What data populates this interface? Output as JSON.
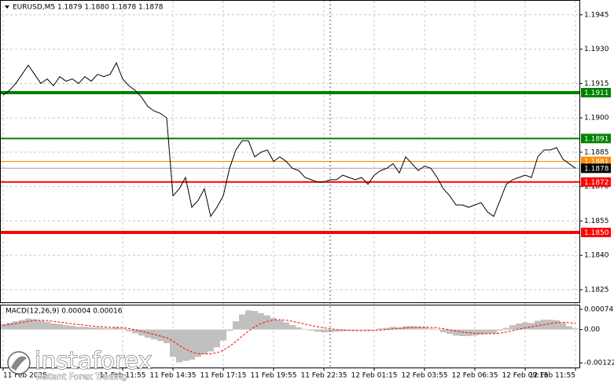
{
  "chart_data": [
    {
      "type": "line",
      "title": "EURUSD,M5  1.1879 1.1880 1.1878 1.1878",
      "categories": [
        "11 Feb 2025",
        null,
        null,
        null,
        null,
        null,
        null,
        null,
        null,
        null,
        null,
        null,
        null,
        null,
        null,
        null,
        null,
        null,
        null,
        "11 Feb 11:55",
        null,
        null,
        null,
        null,
        null,
        null,
        null,
        "11 Feb 14:35",
        null,
        null,
        null,
        null,
        null,
        null,
        null,
        "11 Feb 17:15",
        null,
        null,
        null,
        null,
        null,
        null,
        null,
        "11 Feb 19:55",
        null,
        null,
        null,
        null,
        null,
        null,
        null,
        "11 Feb 22:35",
        null,
        null,
        null,
        null,
        null,
        null,
        null,
        "12 Feb 01:15",
        null,
        null,
        null,
        null,
        null,
        null,
        null,
        "12 Feb 03:55",
        null,
        null,
        null,
        null,
        null,
        null,
        null,
        "12 Feb 06:35",
        null,
        null,
        null,
        null,
        null,
        null,
        null,
        "12 Feb 09:15",
        null,
        null,
        null,
        null,
        null,
        null,
        null,
        "12 Feb 11:55"
      ],
      "series": [
        {
          "color": "#000000",
          "values": [
            1.191,
            1.1912,
            1.1915,
            1.1919,
            1.1923,
            1.1919,
            1.1915,
            1.1917,
            1.1914,
            1.1918,
            1.1916,
            1.1917,
            1.1915,
            1.1918,
            1.1916,
            1.1919,
            1.1918,
            1.1919,
            1.1924,
            1.1917,
            1.1914,
            1.1912,
            1.1909,
            1.1905,
            1.1903,
            1.1902,
            1.19,
            1.1866,
            1.1869,
            1.1874,
            1.1861,
            1.1864,
            1.1869,
            1.1857,
            1.1861,
            1.1866,
            1.1878,
            1.1886,
            1.189,
            1.189,
            1.1883,
            1.1885,
            1.1886,
            1.1881,
            1.1883,
            1.1881,
            1.1878,
            1.1877,
            1.1874,
            1.1873,
            1.1872,
            1.1872,
            1.1873,
            1.1873,
            1.1875,
            1.1874,
            1.1873,
            1.1874,
            1.1871,
            1.1875,
            1.1877,
            1.1878,
            1.188,
            1.1876,
            1.1883,
            1.188,
            1.1877,
            1.1879,
            1.1878,
            1.1874,
            1.1869,
            1.1866,
            1.1862,
            1.1862,
            1.1861,
            1.1862,
            1.1863,
            1.1859,
            1.1857,
            1.1864,
            1.1871,
            1.1873,
            1.1874,
            1.1875,
            1.1874,
            1.1883,
            1.1886,
            1.1886,
            1.1887,
            1.1882,
            1.188,
            1.1878
          ]
        }
      ],
      "ylim": [
        1.18195,
        1.19511
      ],
      "yticks": [
        {
          "value": 1.1945,
          "label": "1.1945"
        },
        {
          "value": 1.193,
          "label": "1.1930"
        },
        {
          "value": 1.1915,
          "label": "1.1915"
        },
        {
          "value": 1.19,
          "label": "1.1900"
        },
        {
          "value": 1.1885,
          "label": "1.1885"
        },
        {
          "value": 1.187,
          "label": "1.1870"
        },
        {
          "value": 1.1855,
          "label": "1.1855"
        },
        {
          "value": 1.184,
          "label": "1.1840"
        },
        {
          "value": 1.1825,
          "label": "1.1825"
        }
      ],
      "levels": [
        {
          "value": 1.1911,
          "label": "1.1911",
          "color": "#008000"
        },
        {
          "value": 1.1891,
          "label": "1.1891",
          "color": "#008000"
        },
        {
          "value": 1.1881,
          "label": "1.1881",
          "color": "#ff8c00"
        },
        {
          "value": 1.1872,
          "label": "1.1872",
          "color": "#ff0000"
        },
        {
          "value": 1.185,
          "label": "1.1850",
          "color": "#ff0000"
        }
      ],
      "last_price": {
        "value": 1.1878,
        "label": "1.1878",
        "color": "#000000"
      },
      "grid": true
    },
    {
      "type": "macd",
      "title": "MACD(12,26,9) 0.00004 0.00016",
      "series": [
        {
          "color": "#c0c0c0",
          "values": [
            0.0002,
            0.00025,
            0.0003,
            0.00035,
            0.0004,
            0.00038,
            0.00032,
            0.00028,
            0.00022,
            0.0002,
            0.00016,
            0.00014,
            0.0001,
            0.0001,
            8e-05,
            8e-05,
            6e-05,
            4e-05,
            8e-05,
            4e-05,
            -6e-05,
            -0.00014,
            -0.00022,
            -0.0003,
            -0.00036,
            -0.00042,
            -0.0005,
            -0.001,
            -0.0012,
            -0.00115,
            -0.0011,
            -0.001,
            -0.0009,
            -0.0008,
            -0.00065,
            -0.0004,
            -5e-05,
            0.0003,
            0.00055,
            0.0007,
            0.00068,
            0.0006,
            0.00052,
            0.00042,
            0.00034,
            0.00026,
            0.00016,
            8e-05,
            2e-05,
            -4e-05,
            -8e-05,
            -0.0001,
            -0.0001,
            -8e-05,
            -6e-05,
            -4e-05,
            -4e-05,
            -2e-05,
            -4e-05,
            0.0,
            4e-05,
            6e-05,
            0.0001,
            8e-05,
            0.00012,
            0.00012,
            0.0001,
            8e-05,
            4e-05,
            -2e-05,
            -0.0001,
            -0.00016,
            -0.00022,
            -0.00024,
            -0.00024,
            -0.00022,
            -0.00018,
            -0.00016,
            -0.00014,
            -4e-05,
            6e-05,
            0.00016,
            0.00022,
            0.00026,
            0.00024,
            0.00032,
            0.00036,
            0.00036,
            0.00034,
            0.00024,
            0.00012,
            4e-05
          ]
        },
        {
          "color": "#ff0000",
          "values": [
            0.00015,
            0.00018,
            0.00022,
            0.00026,
            0.0003,
            0.00033,
            0.00034,
            0.00033,
            0.0003,
            0.00027,
            0.00024,
            0.00021,
            0.00018,
            0.00016,
            0.00013,
            0.00011,
            0.0001,
            8e-05,
            8e-05,
            7e-05,
            4e-05,
            -1e-05,
            -6e-05,
            -0.00012,
            -0.00018,
            -0.00024,
            -0.0003,
            -0.00042,
            -0.00058,
            -0.00072,
            -0.00082,
            -0.00088,
            -0.0009,
            -0.00089,
            -0.00085,
            -0.00076,
            -0.00062,
            -0.00044,
            -0.00024,
            -6e-05,
            0.0001,
            0.00022,
            0.0003,
            0.00035,
            0.00036,
            0.00034,
            0.0003,
            0.00025,
            0.0002,
            0.00015,
            0.0001,
            6e-05,
            3e-05,
            0.0,
            -2e-05,
            -3e-05,
            -4e-05,
            -4e-05,
            -4e-05,
            -3e-05,
            -2e-05,
            0.0,
            2e-05,
            4e-05,
            6e-05,
            8e-05,
            9e-05,
            9e-05,
            8e-05,
            6e-05,
            3e-05,
            -1e-05,
            -5e-05,
            -9e-05,
            -0.00012,
            -0.00014,
            -0.00015,
            -0.00015,
            -0.00015,
            -0.00013,
            -9e-05,
            -4e-05,
            1e-05,
            6e-05,
            0.0001,
            0.00014,
            0.00018,
            0.00022,
            0.00025,
            0.00026,
            0.00025,
            0.00022
          ]
        }
      ],
      "ylim": [
        -0.00139,
        0.00088
      ],
      "yticks": [
        0.00074,
        {
          "value": 0,
          "label": "0.00"
        },
        -0.00122
      ]
    }
  ],
  "watermark": {
    "brand": "instaforex",
    "tagline": "Instant Forex Trading"
  }
}
